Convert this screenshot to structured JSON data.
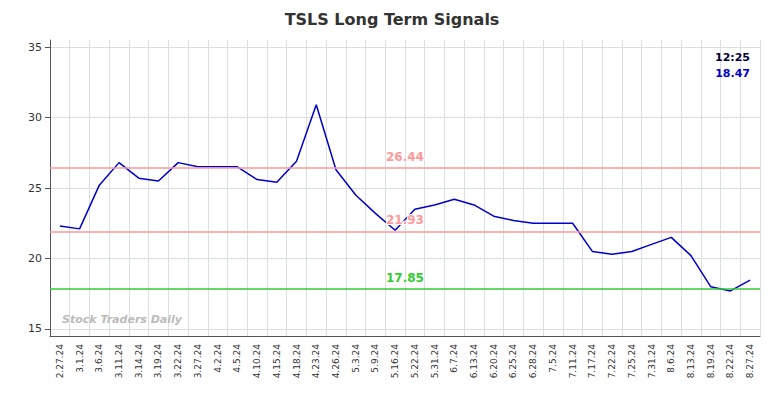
{
  "chart_data": {
    "type": "line",
    "title": "TSLS Long Term Signals",
    "categories": [
      "2.27.24",
      "3.1.24",
      "3.6.24",
      "3.11.24",
      "3.14.24",
      "3.19.24",
      "3.22.24",
      "3.27.24",
      "4.2.24",
      "4.5.24",
      "4.10.24",
      "4.15.24",
      "4.18.24",
      "4.23.24",
      "4.26.24",
      "5.3.24",
      "5.9.24",
      "5.16.24",
      "5.22.24",
      "5.31.24",
      "6.7.24",
      "6.13.24",
      "6.20.24",
      "6.25.24",
      "6.28.24",
      "7.5.24",
      "7.11.24",
      "7.17.24",
      "7.22.24",
      "7.25.24",
      "7.31.24",
      "8.6.24",
      "8.13.24",
      "8.19.24",
      "8.22.24",
      "8.27.24"
    ],
    "values": [
      22.3,
      22.1,
      25.2,
      26.8,
      25.7,
      25.5,
      26.8,
      26.5,
      26.5,
      26.5,
      25.6,
      25.4,
      26.9,
      30.9,
      26.3,
      24.5,
      23.2,
      22.0,
      23.5,
      23.8,
      24.2,
      23.8,
      23.0,
      22.7,
      22.5,
      22.5,
      22.5,
      20.5,
      20.3,
      20.5,
      21.0,
      21.5,
      20.2,
      18.0,
      17.7,
      18.47
    ],
    "color": "#0000cc",
    "ylim": [
      14.5,
      35.5
    ],
    "yticks": [
      15,
      20,
      25,
      30,
      35
    ],
    "grid": true,
    "hlines": [
      {
        "value": 26.44,
        "label": "26.44",
        "color": "#ff9999"
      },
      {
        "value": 21.93,
        "label": "21.93",
        "color": "#ff9999"
      },
      {
        "value": 17.85,
        "label": "17.85",
        "color": "#33cc33"
      }
    ],
    "annotations": [
      {
        "text": "12:25",
        "color": "#000033"
      },
      {
        "text": "18.47",
        "color": "#0000cc"
      }
    ],
    "watermark": "Stock Traders Daily"
  }
}
